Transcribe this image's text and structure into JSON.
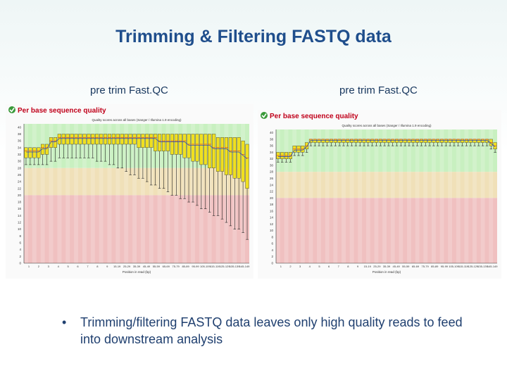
{
  "slide": {
    "title": "Trimming & Filtering FASTQ data",
    "bullet_symbol": "•",
    "bullet_text": "Trimming/filtering FASTQ data leaves only high quality reads to feed into downstream analysis"
  },
  "panels": [
    {
      "heading": "pre trim Fast.QC",
      "chart_title": "Per base sequence quality",
      "status_icon": "check-circle-icon",
      "subtitle": "Quality scores across all bases (Sanger / Illumina 1.9 encoding)",
      "xlabel": "Position in read (bp)",
      "y_ticks": [
        "0",
        "2",
        "4",
        "6",
        "8",
        "10",
        "12",
        "14",
        "16",
        "18",
        "20",
        "22",
        "24",
        "26",
        "28",
        "30",
        "32",
        "34",
        "36",
        "38",
        "40"
      ],
      "x_ticks": [
        "1",
        "2",
        "3",
        "4",
        "5",
        "6",
        "7",
        "8",
        "9",
        "15-19",
        "25-29",
        "35-39",
        "45-49",
        "55-59",
        "65-69",
        "75-79",
        "85-89",
        "95-99",
        "105-109",
        "115-119",
        "125-129",
        "135-139",
        "145-149"
      ],
      "colors": {
        "good": "#c8f0c0",
        "ok": "#f0e0b8",
        "poor": "#f0c0c0",
        "box": "#f0e020",
        "median": "#e04020",
        "mean": "#2040c0"
      }
    },
    {
      "heading": "pre trim Fast.QC",
      "chart_title": "Per base sequence quality",
      "status_icon": "check-circle-icon",
      "subtitle": "Quality scores across all bases (Sanger / Illumina 1.9 encoding)",
      "xlabel": "Position in read (bp)",
      "y_ticks": [
        "0",
        "2",
        "4",
        "6",
        "8",
        "10",
        "12",
        "14",
        "16",
        "18",
        "20",
        "22",
        "24",
        "26",
        "28",
        "30",
        "32",
        "34",
        "36",
        "38",
        "40"
      ],
      "x_ticks": [
        "1",
        "2",
        "3",
        "4",
        "5",
        "6",
        "7",
        "8",
        "9",
        "15-19",
        "25-29",
        "35-39",
        "45-49",
        "55-59",
        "65-69",
        "75-79",
        "85-89",
        "95-99",
        "105-109",
        "115-119",
        "125-129",
        "135-139",
        "145-149"
      ],
      "colors": {
        "good": "#c8f0c0",
        "ok": "#f0e0b8",
        "poor": "#f0c0c0",
        "box": "#f0e020",
        "median": "#e04020",
        "mean": "#2040c0"
      }
    }
  ],
  "chart_data": [
    {
      "type": "box",
      "title": "Per base sequence quality",
      "xlabel": "Position in read (bp)",
      "ylim": [
        0,
        41
      ],
      "medians": [
        33,
        33,
        33,
        33,
        34,
        34,
        36,
        36,
        37,
        37,
        37,
        37,
        37,
        37,
        37,
        37,
        37,
        37,
        37,
        37,
        37,
        37,
        37,
        37,
        37,
        37,
        37,
        37,
        37,
        37,
        37,
        37,
        36,
        36,
        36,
        36,
        36,
        36,
        36,
        35,
        35,
        35,
        35,
        35,
        35,
        34,
        34,
        34,
        34,
        33,
        33,
        33,
        32,
        31
      ],
      "q1": [
        31,
        31,
        31,
        31,
        32,
        32,
        34,
        34,
        35,
        35,
        35,
        35,
        35,
        35,
        35,
        35,
        35,
        35,
        35,
        35,
        35,
        35,
        35,
        35,
        35,
        35,
        35,
        34,
        34,
        34,
        34,
        33,
        33,
        33,
        33,
        32,
        32,
        32,
        31,
        31,
        30,
        30,
        29,
        29,
        28,
        28,
        27,
        27,
        26,
        26,
        25,
        25,
        24,
        22
      ],
      "q3": [
        34,
        34,
        34,
        34,
        35,
        35,
        37,
        37,
        38,
        38,
        38,
        38,
        38,
        38,
        38,
        38,
        38,
        38,
        38,
        38,
        38,
        38,
        38,
        38,
        38,
        38,
        38,
        38,
        38,
        38,
        38,
        38,
        38,
        38,
        38,
        38,
        38,
        38,
        38,
        38,
        38,
        38,
        38,
        38,
        38,
        38,
        37,
        37,
        37,
        37,
        37,
        37,
        36,
        35
      ],
      "low": [
        29,
        29,
        29,
        29,
        29,
        29,
        30,
        30,
        31,
        31,
        31,
        31,
        31,
        31,
        31,
        31,
        31,
        30,
        30,
        30,
        29,
        29,
        28,
        28,
        27,
        26,
        26,
        25,
        25,
        24,
        23,
        23,
        22,
        22,
        21,
        20,
        20,
        19,
        19,
        18,
        18,
        17,
        16,
        16,
        15,
        14,
        14,
        13,
        12,
        11,
        10,
        10,
        9,
        7
      ]
    },
    {
      "type": "box",
      "title": "Per base sequence quality",
      "xlabel": "Position in read (bp)",
      "ylim": [
        0,
        41
      ],
      "medians": [
        33,
        33,
        33,
        33,
        35,
        35,
        35,
        36,
        38,
        38,
        38,
        38,
        38,
        38,
        38,
        38,
        38,
        38,
        38,
        38,
        38,
        38,
        38,
        38,
        38,
        38,
        38,
        38,
        38,
        38,
        38,
        38,
        38,
        38,
        38,
        38,
        38,
        38,
        38,
        38,
        38,
        38,
        38,
        38,
        38,
        38,
        38,
        38,
        38,
        38,
        38,
        38,
        37,
        36
      ],
      "q1": [
        32,
        32,
        32,
        32,
        34,
        34,
        34,
        35,
        37,
        37,
        37,
        37,
        37,
        37,
        37,
        37,
        37,
        37,
        37,
        37,
        37,
        37,
        37,
        37,
        37,
        37,
        37,
        37,
        37,
        37,
        37,
        37,
        37,
        37,
        37,
        37,
        37,
        37,
        37,
        37,
        37,
        37,
        37,
        37,
        37,
        37,
        37,
        37,
        37,
        37,
        37,
        37,
        36,
        35
      ],
      "q3": [
        34,
        34,
        34,
        34,
        36,
        36,
        36,
        37,
        38,
        38,
        38,
        38,
        38,
        38,
        38,
        38,
        38,
        38,
        38,
        38,
        38,
        38,
        38,
        38,
        38,
        38,
        38,
        38,
        38,
        38,
        38,
        38,
        38,
        38,
        38,
        38,
        38,
        38,
        38,
        38,
        38,
        38,
        38,
        38,
        38,
        38,
        38,
        38,
        38,
        38,
        38,
        38,
        38,
        37
      ],
      "low": [
        31,
        31,
        31,
        31,
        33,
        33,
        33,
        34,
        36,
        36,
        36,
        36,
        36,
        36,
        36,
        36,
        36,
        36,
        36,
        36,
        36,
        36,
        36,
        36,
        36,
        36,
        36,
        36,
        36,
        36,
        36,
        36,
        36,
        36,
        36,
        36,
        36,
        36,
        36,
        36,
        36,
        36,
        36,
        36,
        36,
        36,
        36,
        36,
        36,
        36,
        36,
        36,
        35,
        34
      ]
    }
  ]
}
